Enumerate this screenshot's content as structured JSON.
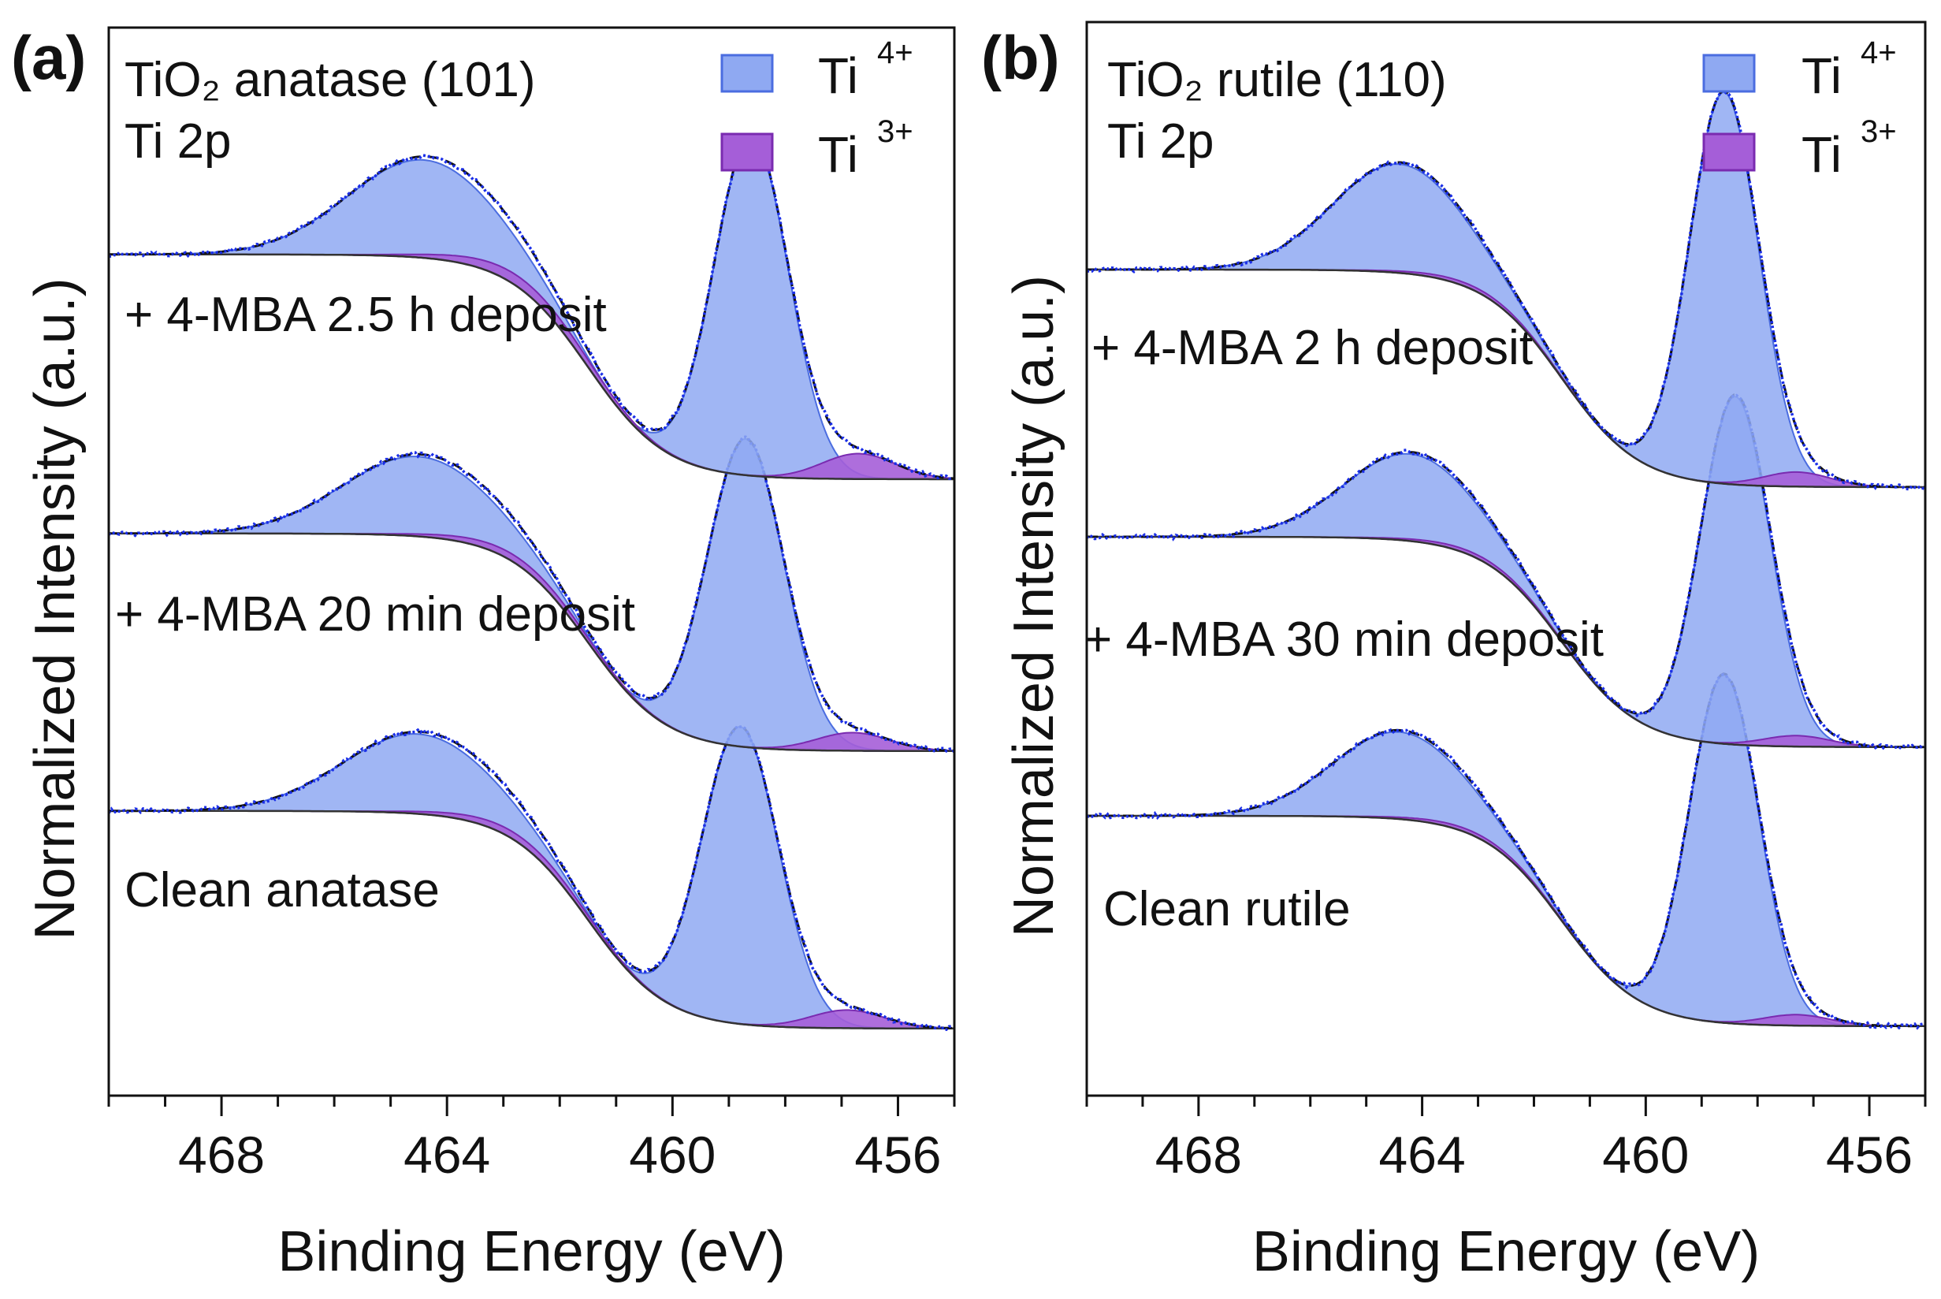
{
  "chart_data": [
    {
      "type": "line",
      "panel": "(a)",
      "title": "TiO₂ anatase (101)",
      "subtitle": "Ti 2p",
      "xlabel": "Binding Energy (eV)",
      "ylabel": "Normalized Intensity (a.u.)",
      "xlim": [
        470,
        455
      ],
      "xticks": [
        "468",
        "464",
        "460",
        "456"
      ],
      "legend": [
        {
          "base": "Ti",
          "sup": "4+",
          "color": "#8fa9f2",
          "edge": "#4b6de0"
        },
        {
          "base": "Ti",
          "sup": "3+",
          "color": "#a55ed8",
          "edge": "#7a2bb0"
        }
      ],
      "series": [
        {
          "name": "+ 4-MBA 2.5 h deposit",
          "baseline_left": 0.72,
          "baseline_right": 0.12,
          "ti4_peaks": [
            {
              "center": 458.8,
              "height": 0.82,
              "width": 0.68
            },
            {
              "center": 464.5,
              "height": 0.22,
              "width": 1.35
            }
          ],
          "ti3_peaks": [
            {
              "center": 456.9,
              "height": 0.05,
              "width": 0.65
            },
            {
              "center": 462.7,
              "height": 0.02,
              "width": 1.2
            }
          ]
        },
        {
          "name": "+ 4-MBA 20 min deposit",
          "baseline_left": 0.72,
          "baseline_right": 0.12,
          "ti4_peaks": [
            {
              "center": 458.7,
              "height": 0.85,
              "width": 0.68
            },
            {
              "center": 464.5,
              "height": 0.22,
              "width": 1.35
            }
          ],
          "ti3_peaks": [
            {
              "center": 456.8,
              "height": 0.05,
              "width": 0.65
            },
            {
              "center": 462.7,
              "height": 0.02,
              "width": 1.2
            }
          ]
        },
        {
          "name": "Clean anatase",
          "baseline_left": 0.72,
          "baseline_right": 0.1,
          "ti4_peaks": [
            {
              "center": 458.6,
              "height": 0.94,
              "width": 0.66
            },
            {
              "center": 464.4,
              "height": 0.27,
              "width": 1.35
            }
          ],
          "ti3_peaks": [
            {
              "center": 456.7,
              "height": 0.07,
              "width": 0.65
            },
            {
              "center": 462.6,
              "height": 0.03,
              "width": 1.2
            }
          ]
        }
      ]
    },
    {
      "type": "line",
      "panel": "(b)",
      "title": "TiO₂ rutile (110)",
      "subtitle": "Ti 2p",
      "xlabel": "Binding Energy (eV)",
      "ylabel": "Normalized Intensity (a.u.)",
      "xlim": [
        470,
        455
      ],
      "xticks": [
        "468",
        "464",
        "460",
        "456"
      ],
      "legend": [
        {
          "base": "Ti",
          "sup": "4+",
          "color": "#8fa9f2",
          "edge": "#4b6de0"
        },
        {
          "base": "Ti",
          "sup": "3+",
          "color": "#a55ed8",
          "edge": "#7a2bb0"
        }
      ],
      "series": [
        {
          "name": "+ 4-MBA 2 h deposit",
          "baseline_left": 0.7,
          "baseline_right": 0.12,
          "ti4_peaks": [
            {
              "center": 458.6,
              "height": 0.96,
              "width": 0.62
            },
            {
              "center": 464.4,
              "height": 0.24,
              "width": 1.2
            }
          ],
          "ti3_peaks": [
            {
              "center": 457.3,
              "height": 0.03,
              "width": 0.6
            },
            {
              "center": 463.1,
              "height": 0.01,
              "width": 1.1
            }
          ]
        },
        {
          "name": "+ 4-MBA 30 min deposit",
          "baseline_left": 0.7,
          "baseline_right": 0.12,
          "ti4_peaks": [
            {
              "center": 458.4,
              "height": 0.96,
              "width": 0.62
            },
            {
              "center": 464.2,
              "height": 0.24,
              "width": 1.2
            }
          ],
          "ti3_peaks": [
            {
              "center": 457.3,
              "height": 0.03,
              "width": 0.6
            },
            {
              "center": 463.0,
              "height": 0.01,
              "width": 1.1
            }
          ]
        },
        {
          "name": "Clean rutile",
          "baseline_left": 0.7,
          "baseline_right": 0.1,
          "ti4_peaks": [
            {
              "center": 458.6,
              "height": 1.08,
              "width": 0.62
            },
            {
              "center": 464.4,
              "height": 0.3,
              "width": 1.2
            }
          ],
          "ti3_peaks": [
            {
              "center": 457.3,
              "height": 0.04,
              "width": 0.6
            },
            {
              "center": 463.1,
              "height": 0.01,
              "width": 1.1
            }
          ]
        }
      ]
    }
  ]
}
